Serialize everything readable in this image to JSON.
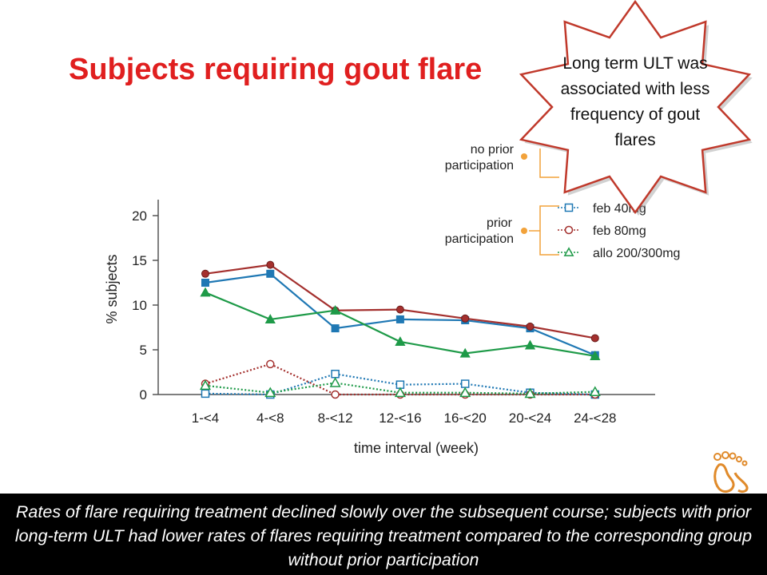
{
  "slide": {
    "title": "Subjects requiring gout flare",
    "callout": "Long term ULT was associated with less frequency of gout flares",
    "caption": "Rates of flare requiring treatment declined slowly over the subsequent course; subjects with prior long-term ULT had lower rates of flares requiring treatment compared to the corresponding group without prior participation",
    "logo_icon": "footprint-icon"
  },
  "chart_data": {
    "type": "line",
    "xlabel": "time interval (week)",
    "ylabel": "% subjects",
    "categories": [
      "1-<4",
      "4-<8",
      "8-<12",
      "12-<16",
      "16-<20",
      "20-<24",
      "24-<28"
    ],
    "yticks": [
      0,
      5,
      10,
      15,
      20
    ],
    "ylim": [
      0,
      20
    ],
    "legend": {
      "groups": [
        {
          "label_lines": [
            "no prior",
            "participation"
          ]
        },
        {
          "label_lines": [
            "prior",
            "participation"
          ]
        }
      ],
      "entries": [
        "feb 40mg",
        "feb 80mg",
        "allo 200/300mg"
      ]
    },
    "series": [
      {
        "group": "no prior participation",
        "name": "feb 40mg",
        "marker": "square",
        "filled": true,
        "dashed": false,
        "color": "#1f78b4",
        "values": [
          12.5,
          13.5,
          7.4,
          8.4,
          8.3,
          7.4,
          4.4
        ]
      },
      {
        "group": "no prior participation",
        "name": "feb 80mg",
        "marker": "circle",
        "filled": true,
        "dashed": false,
        "color": "#a4302e",
        "values": [
          13.5,
          14.5,
          9.4,
          9.5,
          8.5,
          7.6,
          6.3
        ]
      },
      {
        "group": "no prior participation",
        "name": "allo 200/300mg",
        "marker": "triangle",
        "filled": true,
        "dashed": false,
        "color": "#1e9a48",
        "values": [
          11.4,
          8.4,
          9.4,
          5.9,
          4.6,
          5.5,
          4.3
        ]
      },
      {
        "group": "prior participation",
        "name": "feb 40mg",
        "marker": "square",
        "filled": false,
        "dashed": true,
        "color": "#1f78b4",
        "values": [
          0.1,
          0.0,
          2.3,
          1.1,
          1.2,
          0.2,
          0.0
        ]
      },
      {
        "group": "prior participation",
        "name": "feb 80mg",
        "marker": "circle",
        "filled": false,
        "dashed": true,
        "color": "#a4302e",
        "values": [
          1.2,
          3.4,
          0.0,
          0.0,
          0.0,
          0.0,
          0.0
        ]
      },
      {
        "group": "prior participation",
        "name": "allo 200/300mg",
        "marker": "triangle",
        "filled": false,
        "dashed": true,
        "color": "#1e9a48",
        "values": [
          1.0,
          0.2,
          1.3,
          0.2,
          0.2,
          0.1,
          0.3
        ]
      }
    ],
    "colors": {
      "legend_bracket": "#f2a23a",
      "title": "#e01f1f",
      "callout_border": "#c0392b"
    }
  }
}
